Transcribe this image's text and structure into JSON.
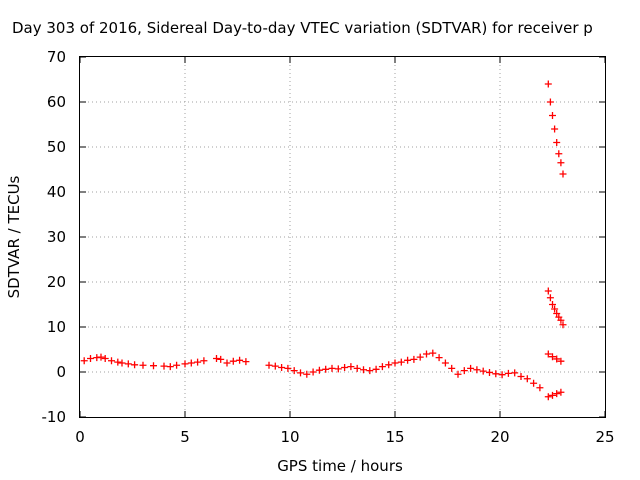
{
  "chart_data": {
    "type": "scatter",
    "title": "Day 303 of 2016, Sidereal Day-to-day VTEC variation (SDTVAR) for receiver p",
    "xlabel": "GPS time / hours",
    "ylabel": "SDTVAR / TECUs",
    "xlim": [
      0,
      25
    ],
    "ylim": [
      -10,
      70
    ],
    "xticks": [
      "0",
      "5",
      "10",
      "15",
      "20",
      "25"
    ],
    "yticks": [
      "-10",
      "0",
      "10",
      "20",
      "30",
      "40",
      "50",
      "60",
      "70"
    ],
    "grid": true,
    "marker": "plus",
    "color": "#ff0000",
    "series": [
      {
        "x": [
          0.2,
          0.5,
          0.8,
          1.0,
          1.2,
          1.5,
          1.8,
          2.0,
          2.3,
          2.6,
          3.0,
          3.5,
          4.0,
          4.3,
          4.6,
          5.0,
          5.3,
          5.6,
          5.9,
          6.5,
          6.7,
          7.0,
          7.3,
          7.6,
          7.9,
          9.0,
          9.3,
          9.6,
          9.9,
          10.2,
          10.5,
          10.8,
          11.1,
          11.4,
          11.7,
          12.0,
          12.3,
          12.6,
          12.9,
          13.2,
          13.5,
          13.8,
          14.1,
          14.4,
          14.7,
          15.0,
          15.3,
          15.6,
          15.9,
          16.2,
          16.5,
          16.8,
          17.1,
          17.4,
          17.7,
          18.0,
          18.3,
          18.6,
          18.9,
          19.2,
          19.5,
          19.8,
          20.1,
          20.4,
          20.7,
          21.0,
          21.3,
          21.6,
          21.9,
          22.3,
          22.4,
          22.5,
          22.6,
          22.7,
          22.8,
          22.9,
          23.0,
          22.3,
          22.4,
          22.5,
          22.6,
          22.7,
          22.8,
          22.9,
          23.0,
          22.3,
          22.5,
          22.7,
          22.9,
          22.3,
          22.5,
          22.7,
          22.9
        ],
        "y": [
          2.5,
          3.0,
          3.2,
          3.3,
          3.0,
          2.5,
          2.2,
          2.0,
          1.8,
          1.6,
          1.5,
          1.4,
          1.3,
          1.2,
          1.5,
          1.8,
          2.0,
          2.2,
          2.5,
          3.0,
          2.8,
          2.0,
          2.4,
          2.6,
          2.3,
          1.5,
          1.3,
          1.0,
          0.8,
          0.3,
          -0.2,
          -0.5,
          0.0,
          0.4,
          0.6,
          0.8,
          0.7,
          1.0,
          1.2,
          0.8,
          0.5,
          0.3,
          0.6,
          1.2,
          1.6,
          2.0,
          2.2,
          2.6,
          2.8,
          3.3,
          4.0,
          4.2,
          3.2,
          2.0,
          0.8,
          -0.5,
          0.3,
          0.8,
          0.5,
          0.2,
          -0.1,
          -0.4,
          -0.6,
          -0.3,
          -0.2,
          -1.0,
          -1.5,
          -2.5,
          -3.5,
          64.0,
          60.0,
          57.0,
          54.0,
          51.0,
          48.5,
          46.5,
          44.0,
          18.0,
          16.5,
          15.0,
          14.0,
          13.0,
          12.2,
          11.5,
          10.5,
          4.0,
          3.4,
          2.9,
          2.4,
          -5.5,
          -5.2,
          -4.8,
          -4.5
        ]
      }
    ]
  }
}
